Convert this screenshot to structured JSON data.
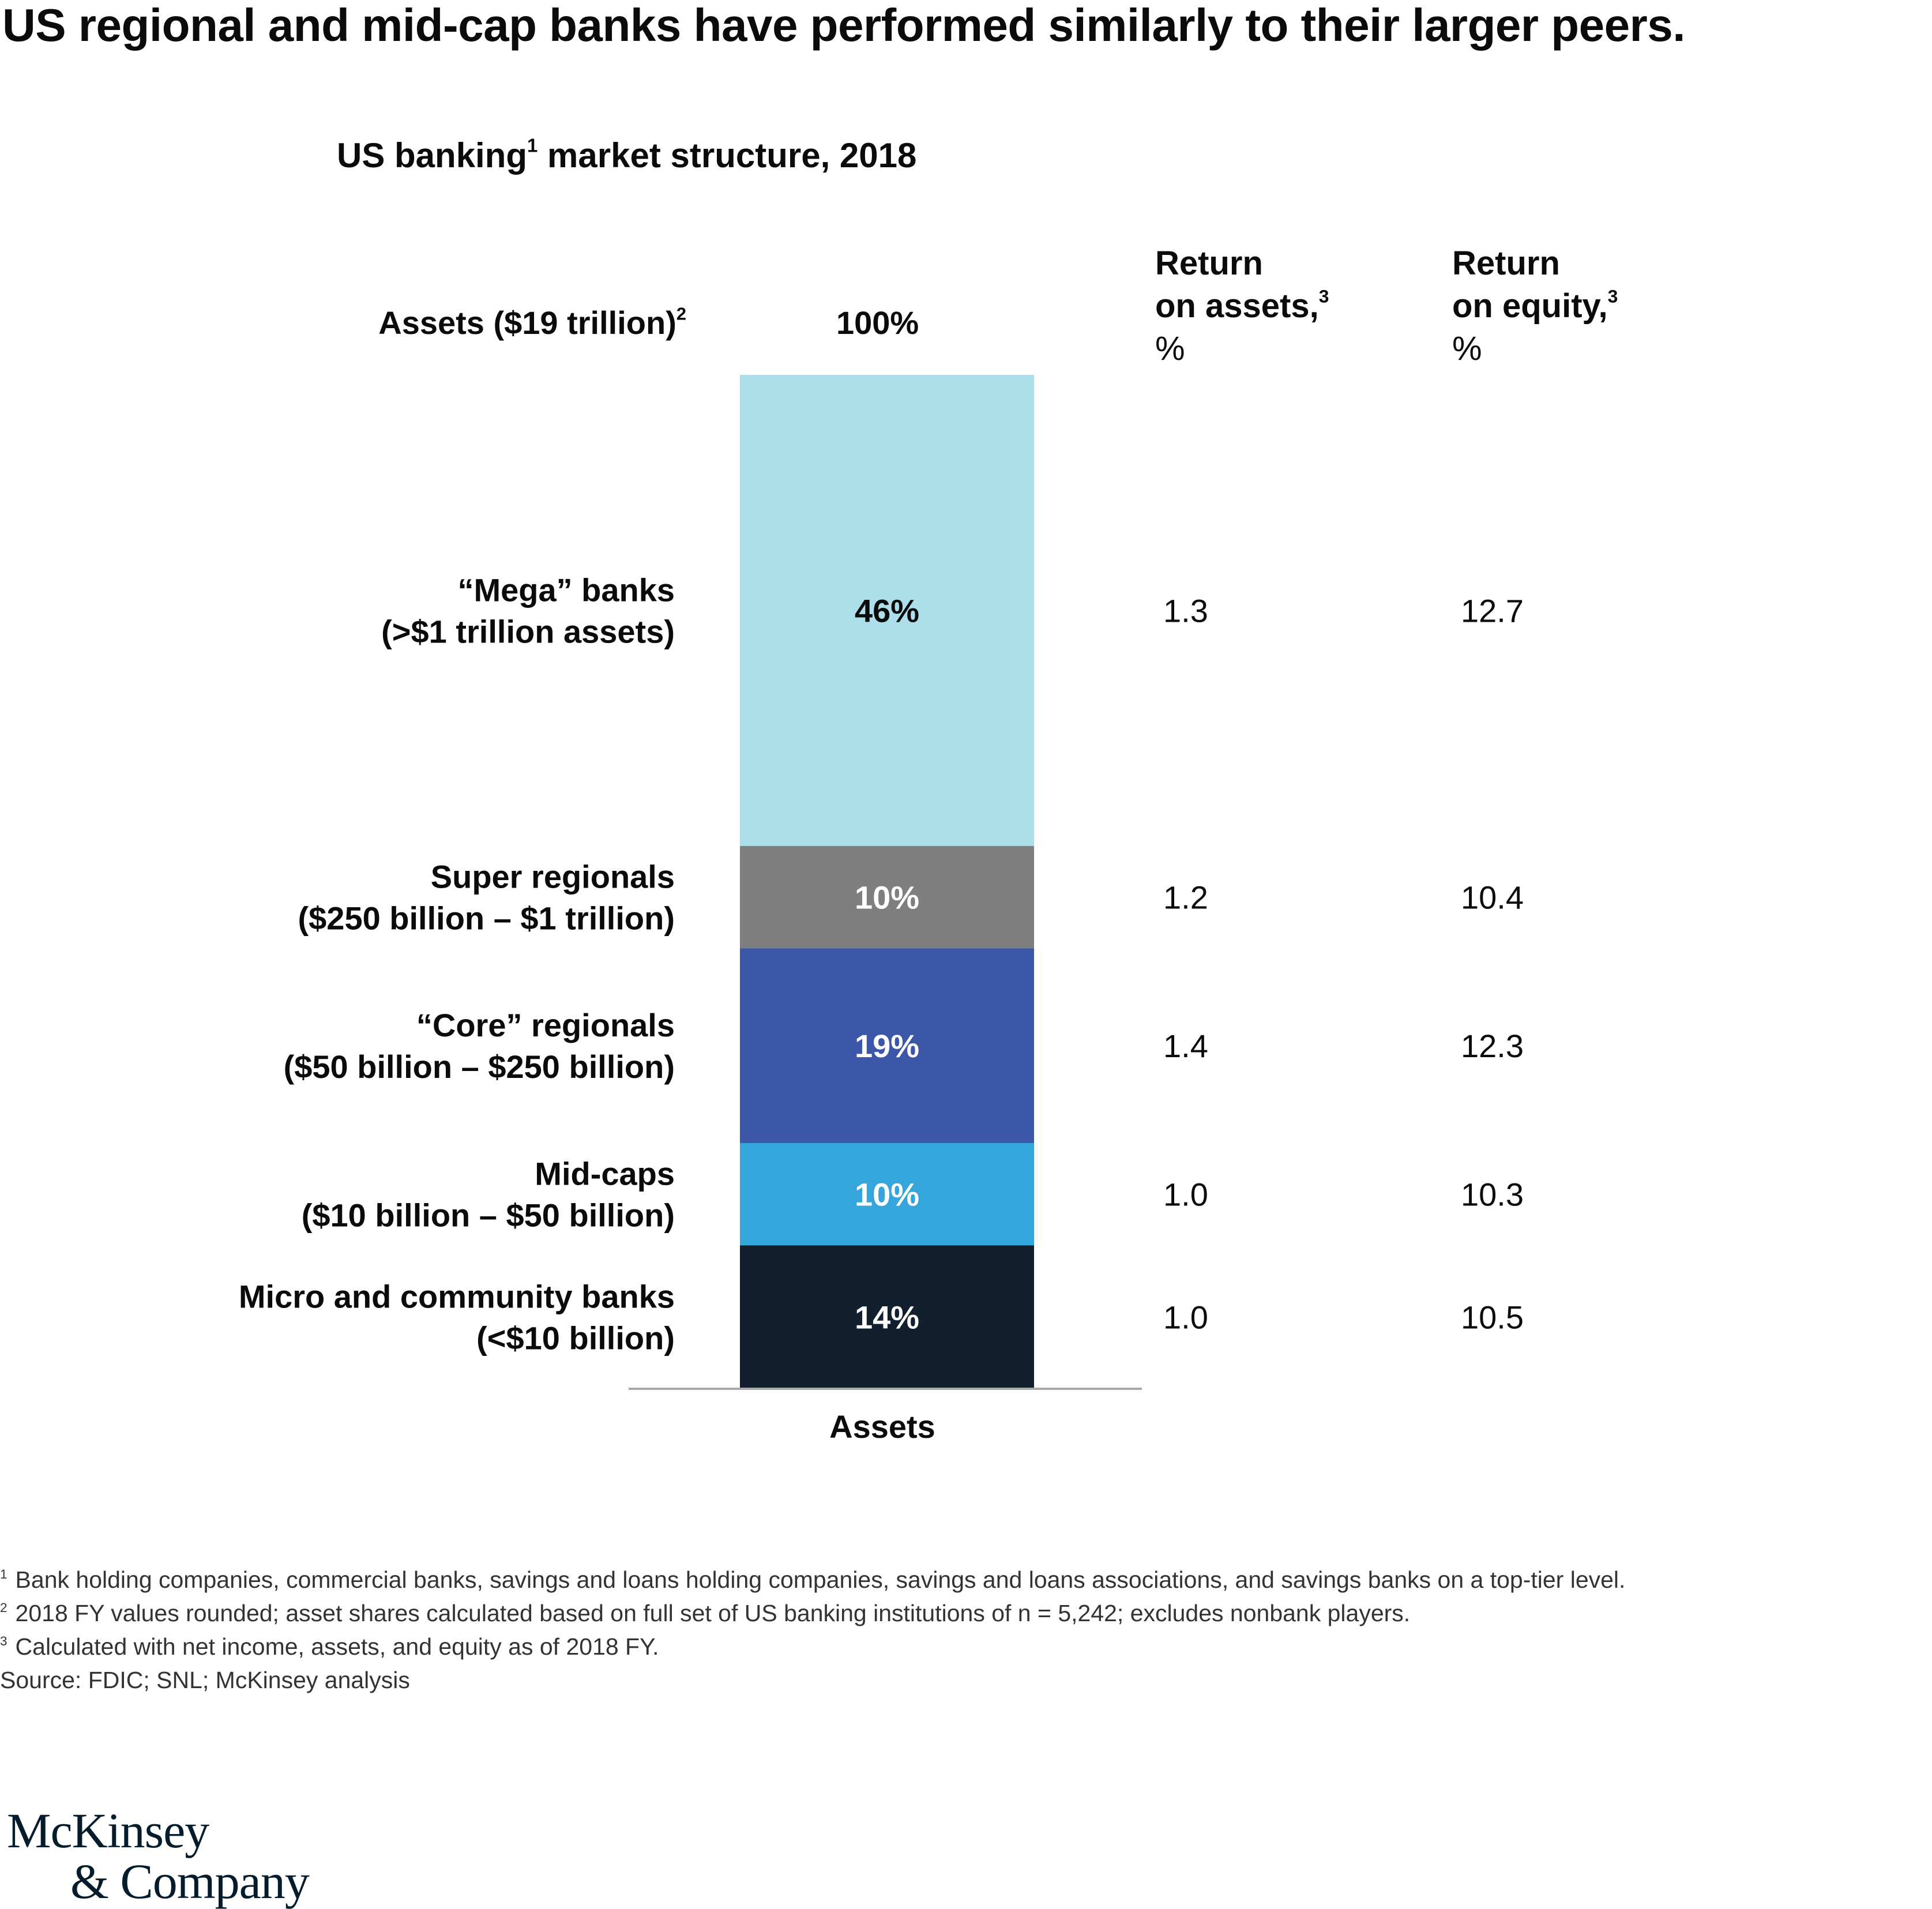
{
  "headline": "US regional and mid-cap banks have performed similarly to their larger peers.",
  "subtitle": {
    "text": "US banking",
    "sup": "1",
    "rest": " market structure, 2018"
  },
  "assets_label": {
    "text": "Assets ($19 trillion)",
    "sup": "2"
  },
  "total_label": "100%",
  "roa_header": {
    "line1": "Return",
    "line2": "on assets,",
    "sup": "3",
    "unit": "%"
  },
  "roe_header": {
    "line1": "Return",
    "line2": "on equity,",
    "sup": "3",
    "unit": "%"
  },
  "chart_data": {
    "type": "bar",
    "stacked": true,
    "title": "US banking market structure, 2018",
    "xlabel": "Assets",
    "total_label": "100%",
    "categories": [
      {
        "name": "“Mega” banks",
        "range": "(>$1 trillion assets)",
        "share": 46,
        "label": "46%",
        "roa": "1.3",
        "roe": "12.7",
        "color": "#addfeb",
        "text_color": "#0b0b0b"
      },
      {
        "name": "Super regionals",
        "range": "($250 billion – $1 trillion)",
        "share": 10,
        "label": "10%",
        "roa": "1.2",
        "roe": "10.4",
        "color": "#7f7f7f",
        "text_color": "#ffffff"
      },
      {
        "name": "“Core” regionals",
        "range": "($50 billion – $250 billion)",
        "share": 19,
        "label": "19%",
        "roa": "1.4",
        "roe": "12.3",
        "color": "#3c56a8",
        "text_color": "#ffffff"
      },
      {
        "name": "Mid-caps",
        "range": "($10 billion – $50 billion)",
        "share": 10,
        "label": "10%",
        "roa": "1.0",
        "roe": "10.3",
        "color": "#35a6dc",
        "text_color": "#ffffff"
      },
      {
        "name": "Micro and community banks",
        "range": "(<$10 billion)",
        "share": 14,
        "label": "14%",
        "roa": "1.0",
        "roe": "10.5",
        "color": "#121f2e",
        "text_color": "#ffffff"
      }
    ],
    "baseline_color": "#a9a9a9"
  },
  "footnotes": [
    {
      "sup": "1",
      "text": "Bank holding companies, commercial banks, savings and loans holding companies, savings and loans associations, and savings banks on a top-tier level."
    },
    {
      "sup": "2",
      "text": "2018 FY values rounded; asset shares calculated based on full set of US banking institutions of n = 5,242; excludes nonbank players."
    },
    {
      "sup": "3",
      "text": "Calculated with net income, assets, and equity as of 2018 FY."
    },
    {
      "sup": "",
      "text": "Source: FDIC; SNL; McKinsey analysis"
    }
  ],
  "logo": {
    "line1": "McKinsey",
    "line2": "& Company"
  }
}
